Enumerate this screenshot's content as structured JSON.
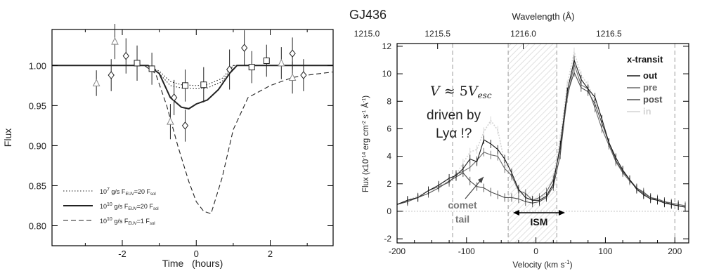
{
  "chart_data": [
    {
      "type": "line",
      "xlabel": "Time   (hours)",
      "ylabel": "Flux",
      "xlim": [
        -3.9,
        3.7
      ],
      "ylim": [
        0.775,
        1.045
      ],
      "xticks": [
        -2,
        0,
        2
      ],
      "yticks": [
        0.8,
        0.85,
        0.9,
        0.95,
        1.0
      ],
      "ytick_labels": [
        "0.80",
        "0.85",
        "0.90",
        "0.95",
        "1.00"
      ],
      "xtick_labels": [
        "-2",
        "0",
        "2"
      ],
      "grid": false,
      "legend_position": "bottom-left",
      "legend": [
        {
          "m": "10",
          "e": "7",
          "rest": " g/s  F",
          "sub": "EUV",
          "tail": "=20  F",
          "sub2": "sol",
          "style": "dotted"
        },
        {
          "m": "10",
          "e": "10",
          "rest": " g/s  F",
          "sub": "EUV",
          "tail": "=20  F",
          "sub2": "sol",
          "style": "solid"
        },
        {
          "m": "10",
          "e": "10",
          "rest": " g/s  F",
          "sub": "EUV",
          "tail": "=1  F",
          "sub2": "sol",
          "style": "dashed"
        }
      ],
      "series": [
        {
          "style": "dotted",
          "x": [
            -3.9,
            -1.3,
            -1.0,
            -0.7,
            -0.4,
            0.0,
            0.3,
            0.7,
            1.0,
            3.7
          ],
          "y": [
            1.0,
            1.0,
            0.99,
            0.975,
            0.972,
            0.971,
            0.972,
            0.98,
            1.0,
            1.0
          ]
        },
        {
          "style": "dotted",
          "x": [
            -3.9,
            -1.3,
            -1.0,
            -0.7,
            -0.4,
            0.0,
            0.3,
            0.7,
            1.0,
            3.7
          ],
          "y": [
            1.0,
            1.0,
            0.993,
            0.98,
            0.976,
            0.975,
            0.976,
            0.984,
            1.0,
            1.0
          ]
        },
        {
          "style": "solid",
          "x": [
            -3.9,
            -1.3,
            -1.0,
            -0.7,
            -0.4,
            -0.2,
            0.0,
            0.3,
            0.6,
            0.9,
            1.1,
            3.7
          ],
          "y": [
            1.0,
            1.0,
            0.99,
            0.96,
            0.948,
            0.946,
            0.952,
            0.957,
            0.97,
            0.99,
            1.0,
            1.0
          ]
        },
        {
          "style": "dashed",
          "x": [
            -3.9,
            -1.4,
            -1.1,
            -0.8,
            -0.5,
            -0.2,
            0.0,
            0.2,
            0.4,
            0.7,
            1.0,
            1.4,
            2.0,
            2.6,
            3.0,
            3.7
          ],
          "y": [
            1.0,
            1.0,
            0.99,
            0.95,
            0.9,
            0.855,
            0.83,
            0.818,
            0.815,
            0.86,
            0.92,
            0.96,
            0.975,
            0.985,
            0.988,
            0.992
          ]
        }
      ],
      "points": [
        {
          "marker": "triangle",
          "x": -2.7,
          "y": 0.978,
          "err": 0.016
        },
        {
          "marker": "diamond",
          "x": -2.3,
          "y": 0.988,
          "err": 0.02
        },
        {
          "marker": "triangle",
          "x": -2.2,
          "y": 1.03,
          "err": 0.022
        },
        {
          "marker": "diamond",
          "x": -1.9,
          "y": 1.012,
          "err": 0.022
        },
        {
          "marker": "square",
          "x": -1.6,
          "y": 1.003,
          "err": 0.022
        },
        {
          "marker": "square",
          "x": -1.2,
          "y": 0.996,
          "err": 0.02
        },
        {
          "marker": "triangle",
          "x": -0.7,
          "y": 0.93,
          "err": 0.022
        },
        {
          "marker": "diamond",
          "x": -0.6,
          "y": 0.96,
          "err": 0.022
        },
        {
          "marker": "square",
          "x": -0.3,
          "y": 0.975,
          "err": 0.02
        },
        {
          "marker": "diamond",
          "x": -0.3,
          "y": 0.925,
          "err": 0.02
        },
        {
          "marker": "square",
          "x": 0.2,
          "y": 0.976,
          "err": 0.022
        },
        {
          "marker": "diamond",
          "x": 0.9,
          "y": 0.995,
          "err": 0.025
        },
        {
          "marker": "diamond",
          "x": 1.3,
          "y": 1.022,
          "err": 0.022
        },
        {
          "marker": "square",
          "x": 1.5,
          "y": 0.998,
          "err": 0.02
        },
        {
          "marker": "square",
          "x": 1.9,
          "y": 1.006,
          "err": 0.02
        },
        {
          "marker": "triangle",
          "x": 2.3,
          "y": 1.003,
          "err": 0.02
        },
        {
          "marker": "diamond",
          "x": 2.6,
          "y": 1.015,
          "err": 0.02
        },
        {
          "marker": "triangle",
          "x": 2.6,
          "y": 0.985,
          "err": 0.02
        },
        {
          "marker": "diamond",
          "x": 2.9,
          "y": 0.988,
          "err": 0.02
        }
      ]
    },
    {
      "type": "line",
      "title": "GJ436",
      "xlabel": "Velocity (km s",
      "xlabel_sup": "-1",
      "xlabel_close": ")",
      "ylabel_main": "Flux (x10",
      "ylabel_exp": "-14",
      "ylabel_units": " erg cm",
      "ylabel_cm_exp": "-2",
      "ylabel_s": " s",
      "ylabel_s_exp": "-1",
      "ylabel_A": " Å",
      "ylabel_A_exp": "-1",
      "ylabel_close": ")",
      "top_axis_label": "Wavelength (Å)",
      "top_ticks": [
        "1215.0",
        "1215.5",
        "1216.0",
        "1216.5"
      ],
      "top_tick_velocity": [
        -265.0,
        -141.6,
        -18.3,
        105.0
      ],
      "xlim": [
        -200,
        220
      ],
      "ylim": [
        -2.3,
        12.2
      ],
      "xticks": [
        -200,
        -100,
        0,
        100,
        200
      ],
      "xtick_labels": [
        "-200",
        "-100",
        "0",
        "100",
        "200"
      ],
      "yticks": [
        -2,
        0,
        2,
        4,
        6,
        8,
        10,
        12
      ],
      "ytick_labels": [
        "-2",
        "0",
        "2",
        "4",
        "6",
        "8",
        "10",
        "12"
      ],
      "grid": false,
      "legend_position": "top-right",
      "legend_title": "x-transit",
      "legend": [
        {
          "label": "out",
          "color": "#1a1a1a"
        },
        {
          "label": "pre",
          "color": "#6a6a6a"
        },
        {
          "label": "post",
          "color": "#4d4d4d"
        },
        {
          "label": "in",
          "color": "#d4d4d4"
        }
      ],
      "ism_region": [
        -40,
        30
      ],
      "dashed_verticals": [
        -120,
        200
      ],
      "annotations": {
        "vel_V": "V",
        "vel_approx": " ≈ 5",
        "vel_V2": "V",
        "vel_sub": "esc",
        "driven": "driven by",
        "lya": "Lyα !?",
        "comet": "comet",
        "tail": "tail",
        "ism": "ISM"
      },
      "x": [
        -200,
        -185,
        -170,
        -155,
        -140,
        -125,
        -115,
        -105,
        -95,
        -85,
        -75,
        -65,
        -55,
        -45,
        -35,
        -25,
        -15,
        -5,
        5,
        15,
        25,
        35,
        45,
        55,
        65,
        75,
        85,
        95,
        105,
        115,
        125,
        135,
        145,
        155,
        165,
        175,
        185,
        195,
        205,
        215
      ],
      "series": [
        {
          "name": "out",
          "values": [
            0.5,
            0.8,
            1.0,
            1.5,
            1.9,
            2.4,
            2.6,
            3.1,
            3.8,
            3.6,
            5.2,
            4.9,
            4.5,
            3.8,
            2.8,
            1.6,
            1.0,
            0.8,
            0.8,
            1.1,
            2.0,
            4.8,
            8.7,
            11.0,
            9.6,
            8.9,
            8.3,
            6.7,
            5.0,
            3.9,
            3.0,
            2.3,
            1.6,
            1.2,
            0.9,
            0.8,
            0.6,
            0.5,
            0.4,
            0.3
          ]
        },
        {
          "name": "pre",
          "values": [
            0.5,
            0.8,
            1.0,
            1.5,
            1.8,
            2.1,
            2.7,
            2.9,
            3.2,
            3.7,
            4.3,
            4.1,
            4.0,
            3.1,
            2.6,
            1.5,
            1.3,
            0.8,
            1.0,
            1.4,
            2.3,
            4.5,
            8.2,
            10.7,
            9.2,
            8.9,
            7.5,
            6.0,
            4.8,
            3.6,
            2.8,
            2.2,
            1.7,
            1.4,
            1.0,
            0.9,
            0.7,
            0.6,
            0.5,
            0.4
          ]
        },
        {
          "name": "post",
          "values": [
            0.5,
            0.7,
            1.0,
            1.3,
            1.7,
            2.2,
            2.5,
            2.8,
            2.2,
            1.8,
            1.7,
            1.4,
            1.2,
            1.0,
            1.0,
            0.9,
            0.7,
            0.6,
            0.7,
            1.0,
            1.8,
            4.1,
            8.5,
            10.1,
            9.0,
            8.7,
            7.8,
            6.4,
            5.0,
            3.7,
            2.9,
            2.3,
            1.7,
            1.3,
            1.0,
            0.8,
            0.7,
            0.5,
            0.4,
            0.3
          ]
        },
        {
          "name": "in",
          "values": [
            0.5,
            0.8,
            1.1,
            1.5,
            1.8,
            2.4,
            2.7,
            3.5,
            4.3,
            4.5,
            5.8,
            6.6,
            5.9,
            3.5,
            2.5,
            1.4,
            1.2,
            0.9,
            0.9,
            1.3,
            2.5,
            5.3,
            9.2,
            11.6,
            9.9,
            9.2,
            8.0,
            6.5,
            5.0,
            3.9,
            3.0,
            2.3,
            1.7,
            1.2,
            1.0,
            0.9,
            0.7,
            0.6,
            0.4,
            0.3
          ]
        }
      ]
    }
  ]
}
